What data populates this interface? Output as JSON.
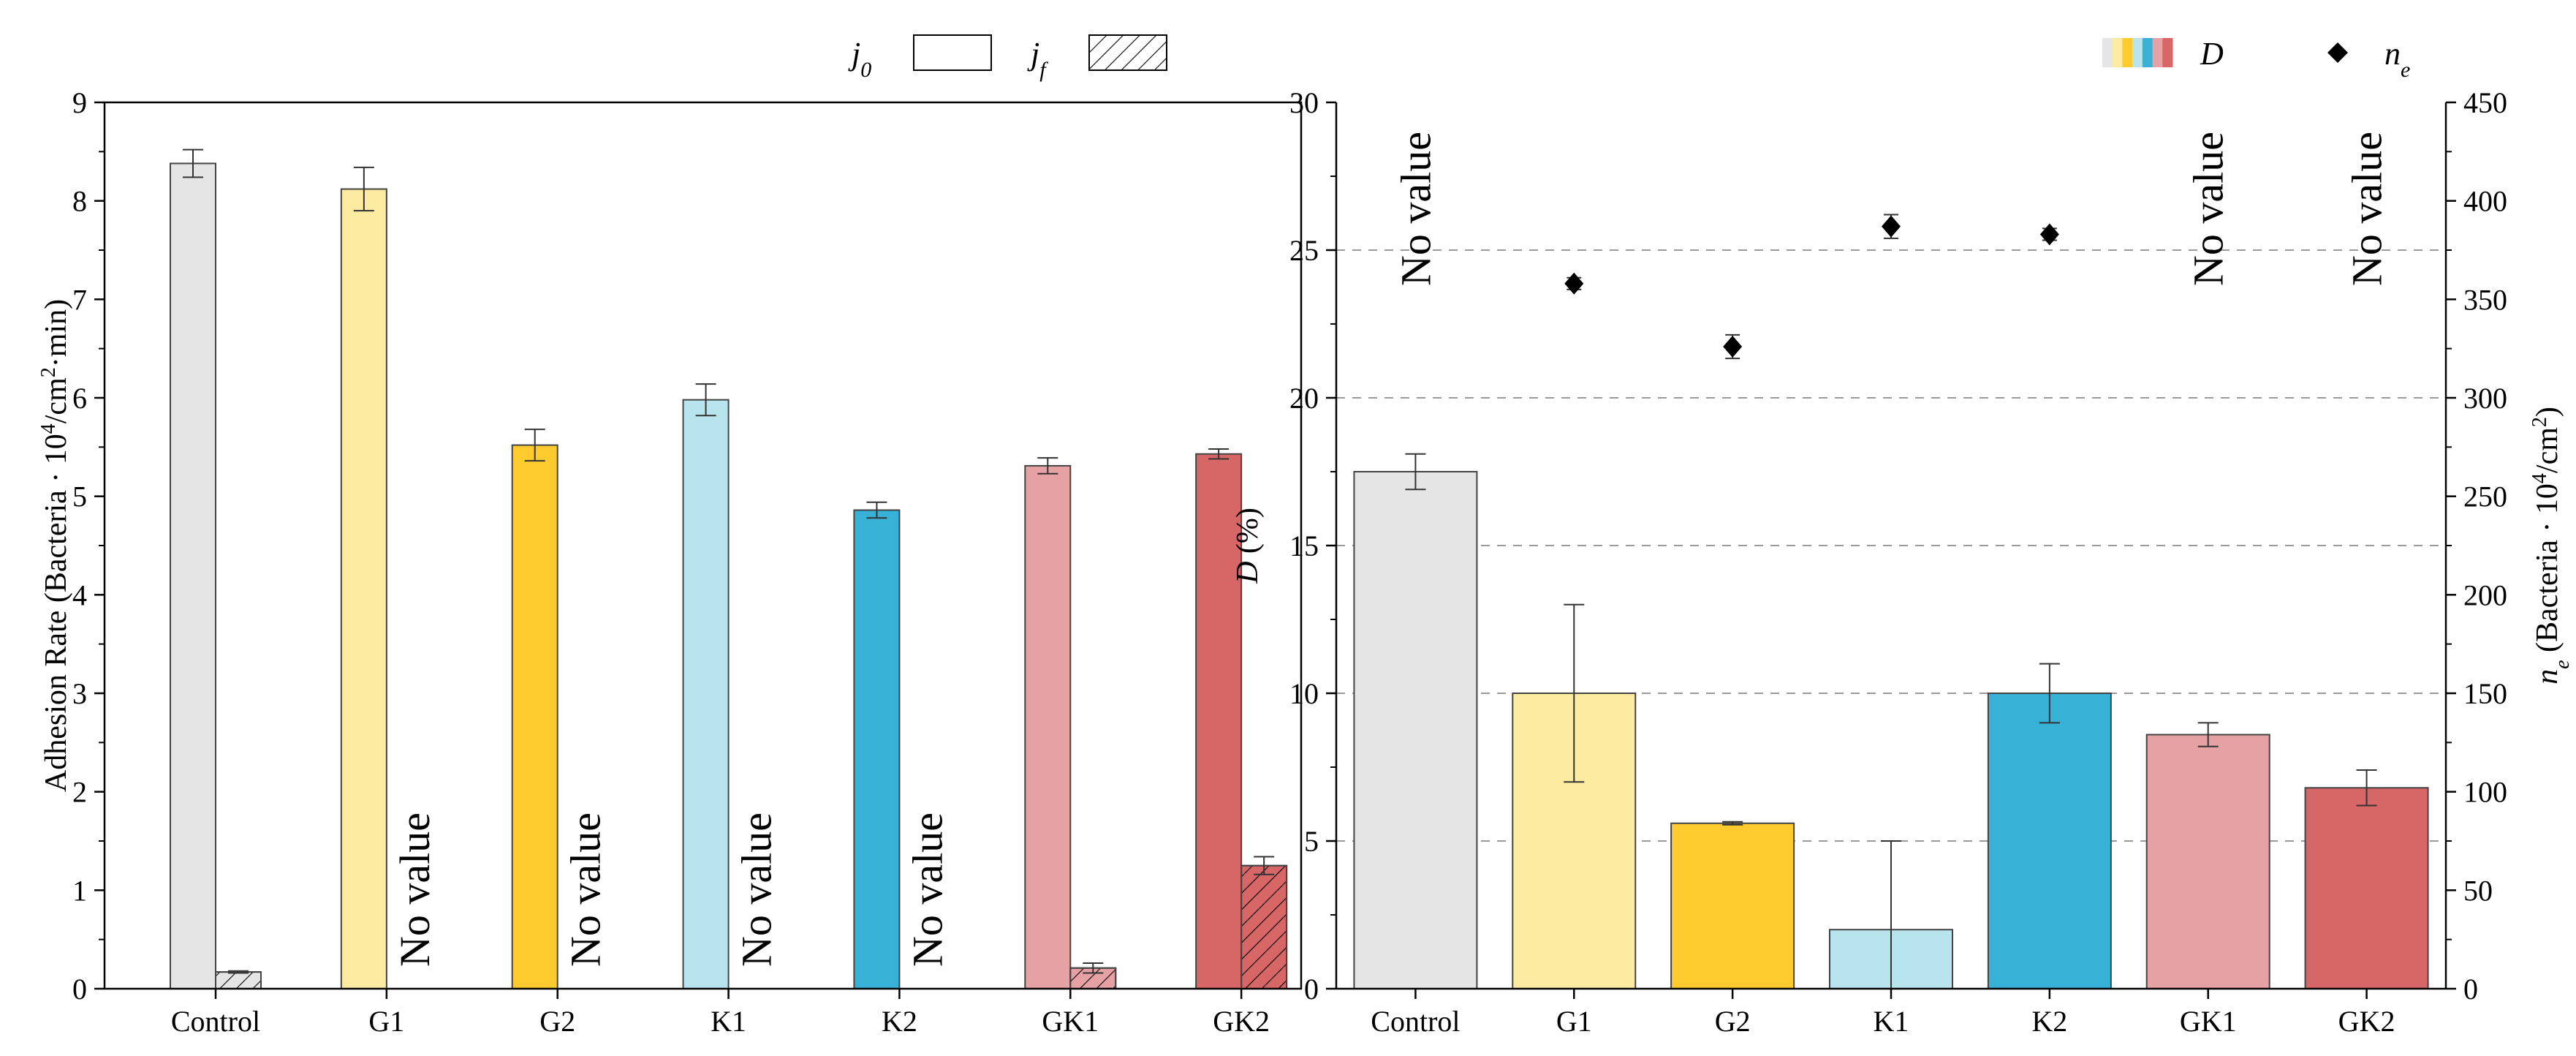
{
  "colors": {
    "Control": "#e5e5e5",
    "G1": "#fdeba2",
    "G2": "#fecb2f",
    "K1": "#b8e4ee",
    "K2": "#37b1d6",
    "GK1": "#e6a1a4",
    "GK2": "#d76666"
  },
  "chart_data": [
    {
      "type": "bar",
      "categories": [
        "Control",
        "G1",
        "G2",
        "K1",
        "K2",
        "GK1",
        "GK2"
      ],
      "series": [
        {
          "name": "j0",
          "values": [
            8.38,
            8.12,
            5.52,
            5.98,
            4.86,
            5.31,
            5.43
          ],
          "errors": [
            0.14,
            0.22,
            0.16,
            0.16,
            0.08,
            0.08,
            0.05
          ]
        },
        {
          "name": "jf",
          "values": [
            0.17,
            null,
            null,
            null,
            null,
            0.21,
            1.25
          ],
          "errors": [
            0.01,
            null,
            null,
            null,
            null,
            0.05,
            0.09
          ]
        }
      ],
      "no_value_label": "No value",
      "legend": {
        "j0": {
          "base": "j",
          "sub": "0"
        },
        "jf": {
          "base": "j",
          "sub": "f"
        },
        "placement": "top-right"
      },
      "ylabel": {
        "pre": "Adhesion Rate (Bacteria · 10",
        "sup1": "4",
        "mid": "/cm",
        "sup2": "2",
        "post": "·min)"
      },
      "xlabel": "",
      "ylim": [
        0,
        9
      ],
      "yticks": [
        0,
        1,
        2,
        3,
        4,
        5,
        6,
        7,
        8,
        9
      ],
      "grid": false
    },
    {
      "type": "bar",
      "categories": [
        "Control",
        "G1",
        "G2",
        "K1",
        "K2",
        "GK1",
        "GK2"
      ],
      "bars": {
        "name": "D",
        "values": [
          17.5,
          10.0,
          5.6,
          2.0,
          10.0,
          8.6,
          6.8
        ],
        "errors": [
          0.6,
          3.0,
          0.05,
          3.0,
          1.0,
          0.4,
          0.6
        ]
      },
      "points": {
        "name": "ne",
        "values": [
          null,
          358,
          326,
          387,
          383,
          null,
          null
        ],
        "errors": [
          null,
          3,
          6,
          6,
          3,
          null,
          null
        ]
      },
      "no_value_label": "No value",
      "legend": {
        "D": "D",
        "ne": {
          "base": "n",
          "sub": "e"
        },
        "placement": "top-right"
      },
      "ylabel_left": {
        "italic": "D",
        "rest": " (%)"
      },
      "ylabel_right": {
        "base": "n",
        "sub": "e",
        "pre": " (Bacteria · 10",
        "sup1": "4",
        "mid": "/cm",
        "sup2": "2",
        "post": ")"
      },
      "ylim_left": [
        0,
        30
      ],
      "yticks_left": [
        0,
        5,
        10,
        15,
        20,
        25,
        30
      ],
      "ylim_right": [
        0,
        450
      ],
      "yticks_right": [
        0,
        50,
        100,
        150,
        200,
        250,
        300,
        350,
        400,
        450
      ],
      "grid": "dashed horizontal at 5, 10, 15, 20, 25"
    }
  ]
}
